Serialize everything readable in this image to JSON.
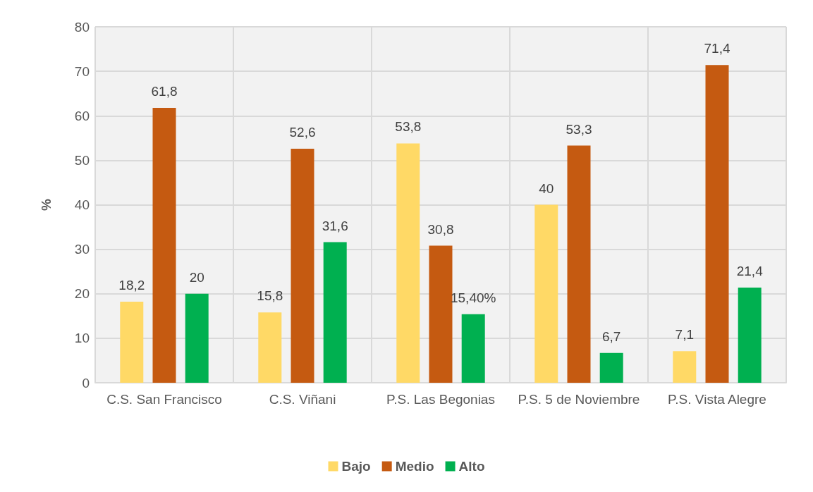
{
  "chart_data": {
    "type": "bar",
    "ylabel": "%",
    "categories": [
      "C.S. San Francisco",
      "C.S. Viñani",
      "P.S. Las Begonias",
      "P.S. 5 de Noviembre",
      "P.S. Vista Alegre"
    ],
    "series": [
      {
        "name": "Bajo",
        "color": "#ffd966",
        "values": [
          18.2,
          15.8,
          53.8,
          40,
          7.1
        ],
        "value_labels": [
          "18,2",
          "15,8",
          "53,8",
          "40",
          "7,1"
        ]
      },
      {
        "name": "Medio",
        "color": "#c55a11",
        "values": [
          61.8,
          52.6,
          30.8,
          53.3,
          71.4
        ],
        "value_labels": [
          "61,8",
          "52,6",
          "30,8",
          "53,3",
          "71,4"
        ]
      },
      {
        "name": "Alto",
        "color": "#00b050",
        "values": [
          20,
          31.6,
          15.4,
          6.7,
          21.4
        ],
        "value_labels": [
          "20",
          "31,6",
          "15,40%",
          "6,7",
          "21,4"
        ]
      }
    ],
    "ylim": [
      0,
      80
    ],
    "yticks": [
      0,
      10,
      20,
      30,
      40,
      50,
      60,
      70,
      80
    ],
    "grid": true,
    "legend": "bottom"
  }
}
